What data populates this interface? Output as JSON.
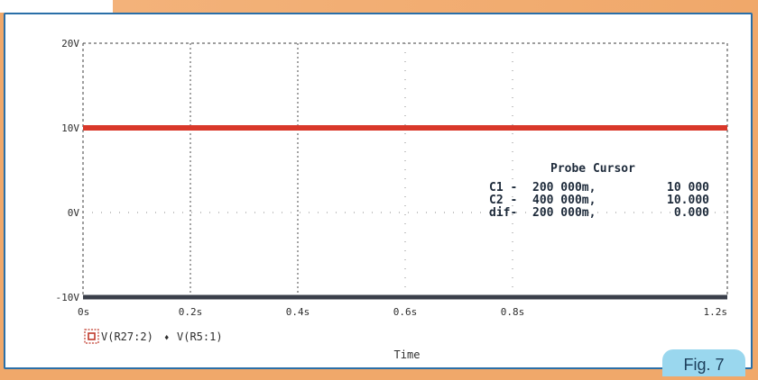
{
  "chart_data": {
    "type": "line",
    "title": "",
    "xlabel": "Time",
    "ylabel": "",
    "xlim": [
      0,
      1.2
    ],
    "ylim": [
      -10,
      20
    ],
    "x_ticks": [
      {
        "value": 0,
        "label": "0s"
      },
      {
        "value": 0.2,
        "label": "0.2s"
      },
      {
        "value": 0.4,
        "label": "0.4s"
      },
      {
        "value": 0.6,
        "label": "0.6s"
      },
      {
        "value": 0.8,
        "label": "0.8s"
      },
      {
        "value": 1.2,
        "label": "1.2s"
      }
    ],
    "y_ticks": [
      {
        "value": -10,
        "label": "-10V"
      },
      {
        "value": 0,
        "label": "0V"
      },
      {
        "value": 10,
        "label": "10V"
      },
      {
        "value": 20,
        "label": "20V"
      }
    ],
    "grid": true,
    "series": [
      {
        "name": "V(R27:2)",
        "color": "#d9382a",
        "x": [
          0,
          1.2
        ],
        "y": [
          10,
          10
        ]
      },
      {
        "name": "V(R5:1)",
        "color": "#3a3f4a",
        "x": [
          0,
          1.2
        ],
        "y": [
          -10,
          -10
        ]
      }
    ],
    "cursor_lines_x": [
      0.2,
      0.4
    ],
    "probe_cursor": {
      "title": "Probe Cursor",
      "rows": [
        {
          "label": "C1",
          "sep": "-",
          "time": "200 000m,",
          "value": "10 000"
        },
        {
          "label": "C2",
          "sep": "-",
          "time": "400 000m,",
          "value": "10.000"
        },
        {
          "label": "dif-",
          "sep": "",
          "time": "200 000m,",
          "value": "0.000"
        }
      ]
    },
    "legend_marker": "o",
    "legend_separator": "♦"
  },
  "figure_label": "Fig. 7"
}
